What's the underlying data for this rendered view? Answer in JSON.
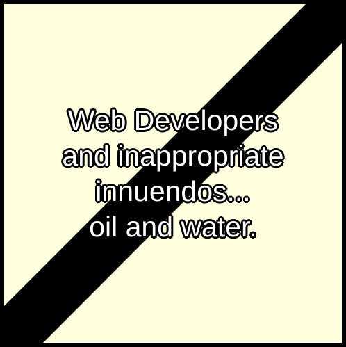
{
  "image": {
    "background_color": "#ffffe0",
    "stripe_color": "#000000",
    "text_color": "#ffffff",
    "caption_lines": [
      "Web Developers",
      "and inappropriate",
      "innuendos...",
      "oil and water."
    ]
  }
}
